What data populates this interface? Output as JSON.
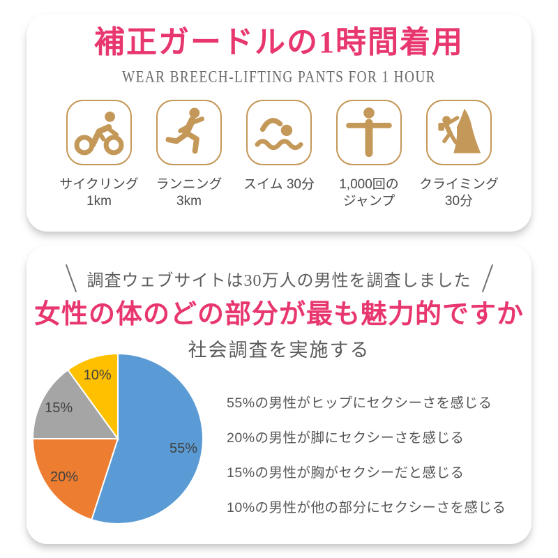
{
  "card1": {
    "title": "補正ガードルの1時間着用",
    "subtitle": "WEAR BREECH-LIFTING PANTS FOR 1 HOUR",
    "accent_color": "#e8376e",
    "icon_color": "#c49859",
    "activities": [
      {
        "icon": "cycling-icon",
        "label_line1": "サイクリング",
        "label_line2": "1km"
      },
      {
        "icon": "running-icon",
        "label_line1": "ランニング",
        "label_line2": "3km"
      },
      {
        "icon": "swimming-icon",
        "label_line1": "スイム 30分",
        "label_line2": ""
      },
      {
        "icon": "jumping-icon",
        "label_line1": "1,000回の",
        "label_line2": "ジャンプ"
      },
      {
        "icon": "climbing-icon",
        "label_line1": "クライミング",
        "label_line2": "30分"
      }
    ]
  },
  "card2": {
    "claim": "調査ウェブサイトは30万人の男性を調査しました",
    "title": "女性の体のどの部分が最も魅力的ですか",
    "subtitle": "社会調査を実施する"
  },
  "chart_data": {
    "type": "pie",
    "title": "社会調査を実施する",
    "labels": [
      "ヒップ",
      "脚",
      "胸",
      "他の部分"
    ],
    "values": [
      55,
      20,
      15,
      10
    ],
    "value_labels": [
      "55%",
      "20%",
      "15%",
      "10%"
    ],
    "colors": [
      "#5B9BD5",
      "#ED7D31",
      "#A5A5A5",
      "#FFC000"
    ],
    "start_angle_deg": 0,
    "direction": "clockwise",
    "legend_position": "none",
    "annotations": [
      "55%の男性がヒップにセクシーさを感じる",
      "20%の男性が脚にセクシーさを感じる",
      "15%の男性が胸がセクシーだと感じる",
      "10%の男性が他の部分にセクシーさを感じる"
    ]
  }
}
